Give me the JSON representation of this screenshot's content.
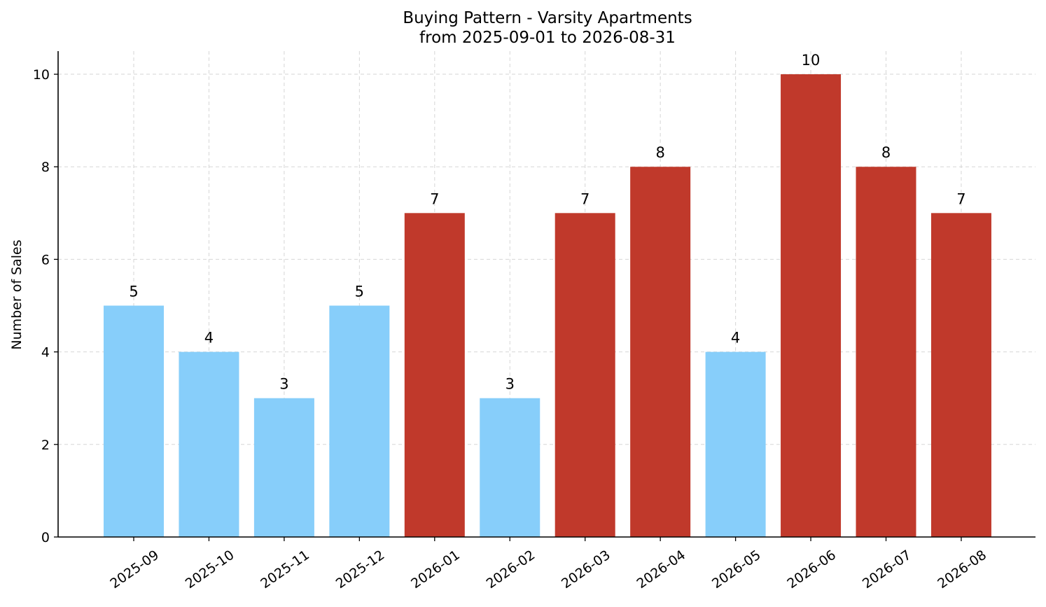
{
  "chart_data": {
    "type": "bar",
    "title": "Buying Pattern - Varsity Apartments",
    "subtitle": "from 2025-09-01 to 2026-08-31",
    "xlabel": "",
    "ylabel": "Number of Sales",
    "categories": [
      "2025-09",
      "2025-10",
      "2025-11",
      "2025-12",
      "2026-01",
      "2026-02",
      "2026-03",
      "2026-04",
      "2026-05",
      "2026-06",
      "2026-07",
      "2026-08"
    ],
    "values": [
      5,
      4,
      3,
      5,
      7,
      3,
      7,
      8,
      4,
      10,
      8,
      7
    ],
    "ylim": [
      0,
      10.5
    ],
    "yticks": [
      0,
      2,
      4,
      6,
      8,
      10
    ],
    "grid": true,
    "colors": {
      "low": "#87CEFA",
      "high": "#C0392B"
    },
    "bar_colors": [
      "#87CEFA",
      "#87CEFA",
      "#87CEFA",
      "#87CEFA",
      "#C0392B",
      "#87CEFA",
      "#C0392B",
      "#C0392B",
      "#87CEFA",
      "#C0392B",
      "#C0392B",
      "#C0392B"
    ]
  }
}
